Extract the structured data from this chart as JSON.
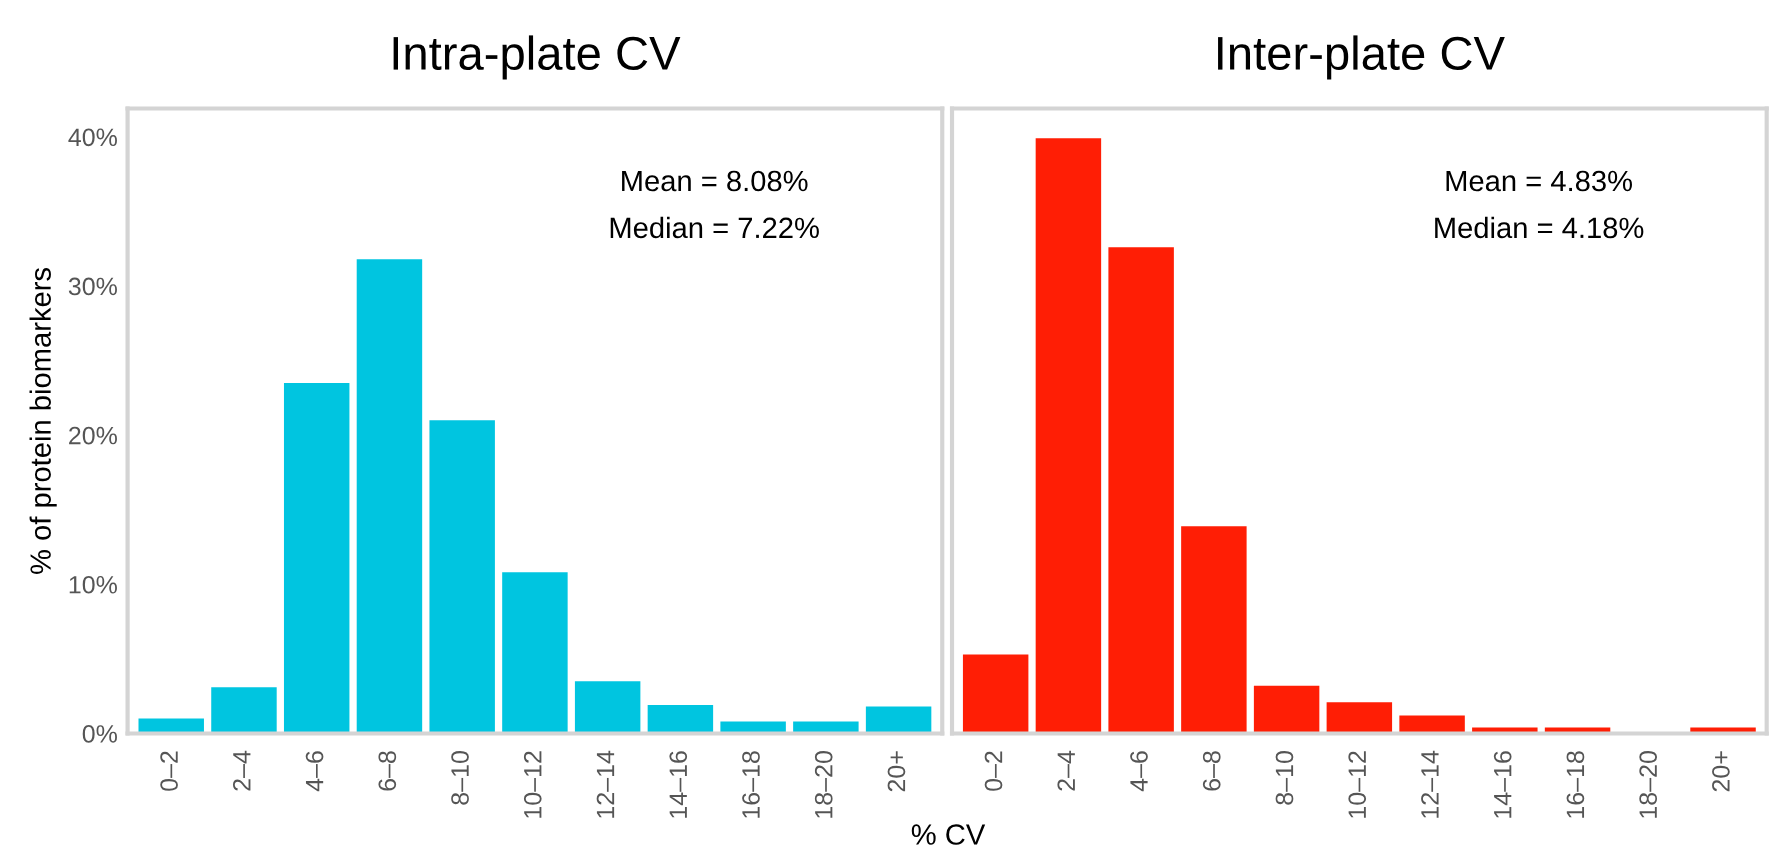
{
  "chart_data": [
    {
      "type": "bar",
      "title": "Intra-plate CV",
      "xlabel": "% CV",
      "ylabel": "% of protein biomarkers",
      "categories": [
        "0–2",
        "2–4",
        "4–6",
        "6–8",
        "8–10",
        "10–12",
        "12–14",
        "14–16",
        "16–18",
        "18–20",
        "20+"
      ],
      "series": [
        {
          "color": "#00c5e0",
          "values": [
            1.0,
            3.1,
            23.5,
            31.8,
            21.0,
            10.8,
            3.5,
            1.9,
            0.8,
            0.8,
            1.8
          ]
        }
      ],
      "ylim": [
        0,
        41.9
      ],
      "yticks": [
        {
          "value": 0,
          "label": "0%"
        },
        {
          "value": 10,
          "label": "10%"
        },
        {
          "value": 20,
          "label": "20%"
        },
        {
          "value": 30,
          "label": "30%"
        },
        {
          "value": 40,
          "label": "40%"
        }
      ],
      "annotations": [
        "Mean = 8.08%",
        "Median = 7.22%"
      ],
      "grid": false,
      "legend": false
    },
    {
      "type": "bar",
      "title": "Inter-plate CV",
      "categories": [
        "0–2",
        "2–4",
        "4–6",
        "6–8",
        "8–10",
        "10–12",
        "12–14",
        "14–16",
        "16–18",
        "18–20",
        "20+"
      ],
      "series": [
        {
          "color": "#ff1e05",
          "values": [
            5.3,
            39.9,
            32.6,
            13.9,
            3.2,
            2.1,
            1.2,
            0.4,
            0.4,
            0,
            0.4
          ]
        }
      ],
      "ylim": [
        0,
        41.9
      ],
      "tick_labels": "x",
      "annotations": [
        "Mean = 4.83%",
        "Median = 4.18%"
      ],
      "grid": false,
      "legend": false
    }
  ]
}
